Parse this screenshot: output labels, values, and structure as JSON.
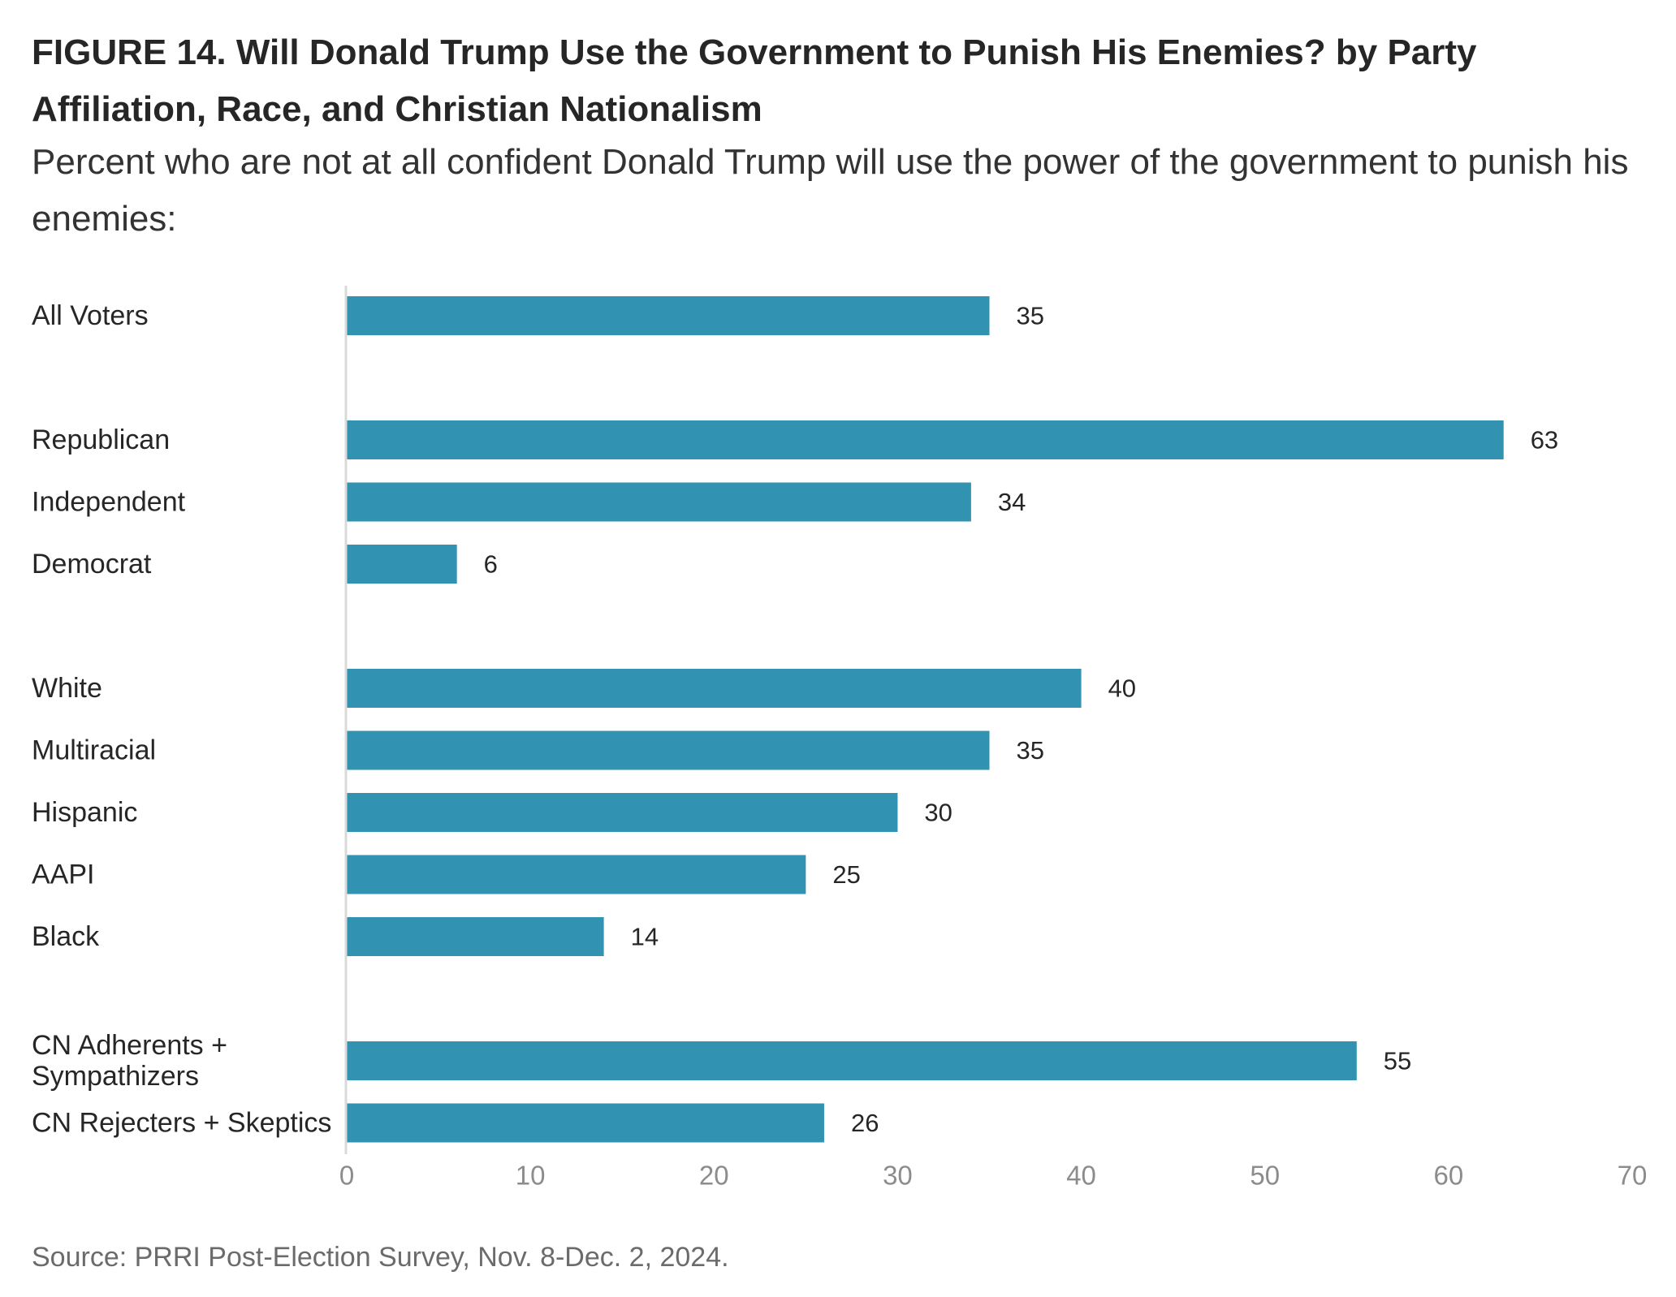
{
  "title": "FIGURE 14.  Will Donald Trump Use the Government to Punish His Enemies? by Party Affiliation, Race, and Christian Nationalism",
  "subtitle": "Percent who are not at all confident Donald Trump will use the power of the government to punish his enemies:",
  "source": "Source: PRRI Post-Election Survey, Nov. 8-Dec. 2, 2024.",
  "colors": {
    "bar": "#3192b1",
    "axis": "#d9d9d9"
  },
  "chart_data": {
    "type": "bar",
    "orientation": "horizontal",
    "title": "FIGURE 14.  Will Donald Trump Use the Government to Punish His Enemies? by Party Affiliation, Race, and Christian Nationalism",
    "xlabel": "",
    "ylabel": "",
    "xlim": [
      0,
      70
    ],
    "xticks": [
      0,
      10,
      20,
      30,
      40,
      50,
      60,
      70
    ],
    "grid": false,
    "groups": [
      {
        "categories": [
          {
            "label": [
              "All Voters"
            ],
            "value": 35
          }
        ]
      },
      {
        "categories": [
          {
            "label": [
              "Republican"
            ],
            "value": 63
          },
          {
            "label": [
              "Independent"
            ],
            "value": 34
          },
          {
            "label": [
              "Democrat"
            ],
            "value": 6
          }
        ]
      },
      {
        "categories": [
          {
            "label": [
              "White"
            ],
            "value": 40
          },
          {
            "label": [
              "Multiracial"
            ],
            "value": 35
          },
          {
            "label": [
              "Hispanic"
            ],
            "value": 30
          },
          {
            "label": [
              "AAPI"
            ],
            "value": 25
          },
          {
            "label": [
              "Black"
            ],
            "value": 14
          }
        ]
      },
      {
        "categories": [
          {
            "label": [
              "CN Adherents +",
              "Sympathizers"
            ],
            "value": 55
          },
          {
            "label": [
              "CN Rejecters + Skeptics"
            ],
            "value": 26
          }
        ]
      }
    ]
  }
}
